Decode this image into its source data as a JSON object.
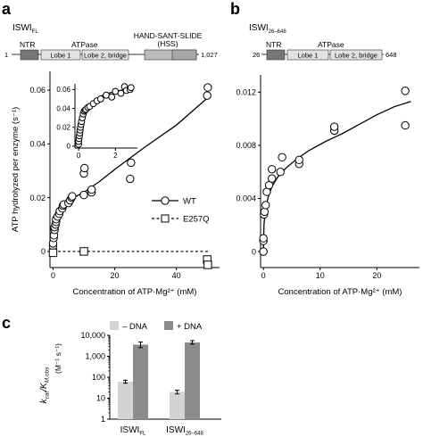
{
  "panels": {
    "a": {
      "letter": "a",
      "domain_title": "ISWI",
      "domain_title_sub": "FL",
      "domains": {
        "start": "1",
        "end": "1,027",
        "ntr": "NTR",
        "atpase": "ATPase",
        "lobe1": "Lobe 1",
        "lobe2": "Lobe 2, bridge",
        "hss_line1": "HAND-SANT-SLIDE",
        "hss_line2": "(HSS)"
      }
    },
    "b": {
      "letter": "b",
      "domain_title": "ISWI",
      "domain_title_sub": "26–648",
      "domains": {
        "start": "26",
        "end": "648",
        "ntr": "NTR",
        "atpase": "ATPase",
        "lobe1": "Lobe 1",
        "lobe2": "Lobe 2, bridge"
      }
    },
    "c": {
      "letter": "c"
    }
  },
  "chart_data": [
    {
      "id": "a-main",
      "type": "scatter",
      "xlabel": "Concentration of ATP·Mg²⁺ (mM)",
      "ylabel": "ATP hydrolyzed per enzyme (s⁻¹)",
      "xlim": [
        -1,
        54
      ],
      "ylim": [
        -0.006,
        0.067
      ],
      "xticks": [
        0,
        20,
        40
      ],
      "yticks": [
        0,
        0.02,
        0.04,
        0.06
      ],
      "ytick_labels": [
        "0",
        "0.02",
        "0.04",
        "0.06"
      ],
      "legend": {
        "position": "right",
        "entries": [
          "WT",
          "E257Q"
        ]
      },
      "series": [
        {
          "name": "WT",
          "marker": "circle",
          "x": [
            0,
            0,
            0,
            0.2,
            0.3,
            0.5,
            0.5,
            0.8,
            1,
            1,
            1.5,
            2,
            2.2,
            3,
            3.2,
            3.5,
            5,
            5.5,
            6,
            6.2,
            10,
            10,
            10.2,
            12.5,
            12.5,
            25,
            25.3,
            50,
            50.2
          ],
          "y": [
            0.0005,
            0.002,
            0.003,
            0.005,
            0.006,
            0.008,
            0.009,
            0.01,
            0.011,
            0.012,
            0.013,
            0.014,
            0.015,
            0.016,
            0.017,
            0.0175,
            0.018,
            0.019,
            0.02,
            0.0205,
            0.021,
            0.029,
            0.031,
            0.022,
            0.023,
            0.027,
            0.033,
            0.058,
            0.061
          ]
        },
        {
          "name": "E257Q",
          "marker": "square",
          "x": [
            0,
            10,
            50,
            50.2
          ],
          "y": [
            -0.0005,
            0,
            -0.003,
            -0.005
          ]
        }
      ],
      "fit": {
        "x": [
          0,
          0.3,
          0.8,
          1.5,
          2.5,
          4,
          6,
          8,
          10,
          15,
          20,
          30,
          40,
          51
        ],
        "y": [
          0.0,
          0.006,
          0.011,
          0.014,
          0.016,
          0.018,
          0.0195,
          0.0208,
          0.022,
          0.026,
          0.0305,
          0.039,
          0.047,
          0.058
        ]
      },
      "baseline": {
        "x": [
          0,
          51
        ],
        "y": [
          0,
          0
        ]
      }
    },
    {
      "id": "a-inset",
      "type": "scatter",
      "xlim": [
        -0.2,
        3.2
      ],
      "ylim": [
        -0.002,
        0.066
      ],
      "xticks": [
        0,
        2
      ],
      "yticks": [
        0,
        0.02,
        0.04,
        0.06
      ],
      "series": [
        {
          "name": "",
          "marker": "circle",
          "x": [
            0,
            0,
            0.02,
            0.04,
            0.06,
            0.08,
            0.1,
            0.13,
            0.16,
            0.2,
            0.25,
            0.3,
            0.35,
            0.4,
            0.5,
            0.6,
            0.8,
            1,
            1.2,
            1.5,
            1.8,
            2,
            2.3,
            2.5,
            2.6,
            2.8,
            2.85
          ],
          "y": [
            0.002,
            0.005,
            0.008,
            0.011,
            0.014,
            0.017,
            0.02,
            0.023,
            0.026,
            0.03,
            0.034,
            0.037,
            0.038,
            0.039,
            0.041,
            0.042,
            0.045,
            0.048,
            0.05,
            0.054,
            0.052,
            0.058,
            0.056,
            0.063,
            0.059,
            0.06,
            0.062
          ]
        }
      ],
      "fit": {
        "x": [
          0,
          0.05,
          0.1,
          0.2,
          0.3,
          0.5,
          0.8,
          1.2,
          1.6,
          2,
          2.5,
          2.9
        ],
        "y": [
          0.0,
          0.012,
          0.02,
          0.03,
          0.036,
          0.042,
          0.048,
          0.053,
          0.056,
          0.058,
          0.06,
          0.061
        ]
      }
    },
    {
      "id": "b-main",
      "type": "scatter",
      "xlabel": "Concentration of ATP·Mg²⁺ (mM)",
      "xlim": [
        -0.5,
        27.5
      ],
      "ylim": [
        -0.0012,
        0.0133
      ],
      "xticks": [
        0,
        10,
        20
      ],
      "yticks": [
        0,
        0.004,
        0.008,
        0.012
      ],
      "ytick_labels": [
        "0",
        "0.004",
        "0.008",
        "0.012"
      ],
      "series": [
        {
          "name": "",
          "marker": "circle",
          "x": [
            0,
            0,
            0,
            0.1,
            0.2,
            0.4,
            0.6,
            1,
            1.5,
            1.5,
            3,
            3.3,
            6.3,
            6.3,
            12.5,
            12.5,
            25,
            25
          ],
          "y": [
            0.0,
            0.0008,
            0.001,
            0.0028,
            0.003,
            0.0035,
            0.0045,
            0.005,
            0.0055,
            0.0062,
            0.006,
            0.0071,
            0.0066,
            0.0069,
            0.0091,
            0.0094,
            0.0095,
            0.0121
          ]
        }
      ],
      "fit": {
        "x": [
          0,
          0.1,
          0.3,
          0.6,
          1,
          1.5,
          2.5,
          4,
          6,
          8,
          11,
          14,
          17,
          20,
          23,
          26
        ],
        "y": [
          0.0,
          0.002,
          0.003,
          0.0037,
          0.0043,
          0.0049,
          0.0056,
          0.0063,
          0.007,
          0.0076,
          0.0083,
          0.0089,
          0.0096,
          0.0103,
          0.0109,
          0.0113
        ]
      }
    },
    {
      "id": "c-bars",
      "type": "bar",
      "yscale": "log",
      "ylim": [
        1,
        10000
      ],
      "yticks": [
        1,
        10,
        100,
        1000,
        10000
      ],
      "ytick_labels": [
        "1",
        "10",
        "100",
        "1,000",
        "10,000"
      ],
      "ylabel_main": "k",
      "ylabel_sub1": "cat",
      "ylabel_mid": "/K",
      "ylabel_sub2": "M,obs",
      "yunit": "(M⁻¹ s⁻¹)",
      "categories": [
        "ISWI",
        "ISWI"
      ],
      "category_subs": [
        "FL",
        "26–648"
      ],
      "legend": {
        "position": "top",
        "entries": [
          "– DNA",
          "+ DNA"
        ]
      },
      "colors": {
        "minus_dna": "#d3d3d3",
        "plus_dna": "#8c8c8c"
      },
      "series": [
        {
          "name": "– DNA",
          "values": [
            62,
            20
          ],
          "err_low": [
            52,
            16
          ],
          "err_high": [
            72,
            24
          ]
        },
        {
          "name": "+ DNA",
          "values": [
            3600,
            4600
          ],
          "err_low": [
            2600,
            3800
          ],
          "err_high": [
            4800,
            5600
          ]
        }
      ]
    }
  ]
}
